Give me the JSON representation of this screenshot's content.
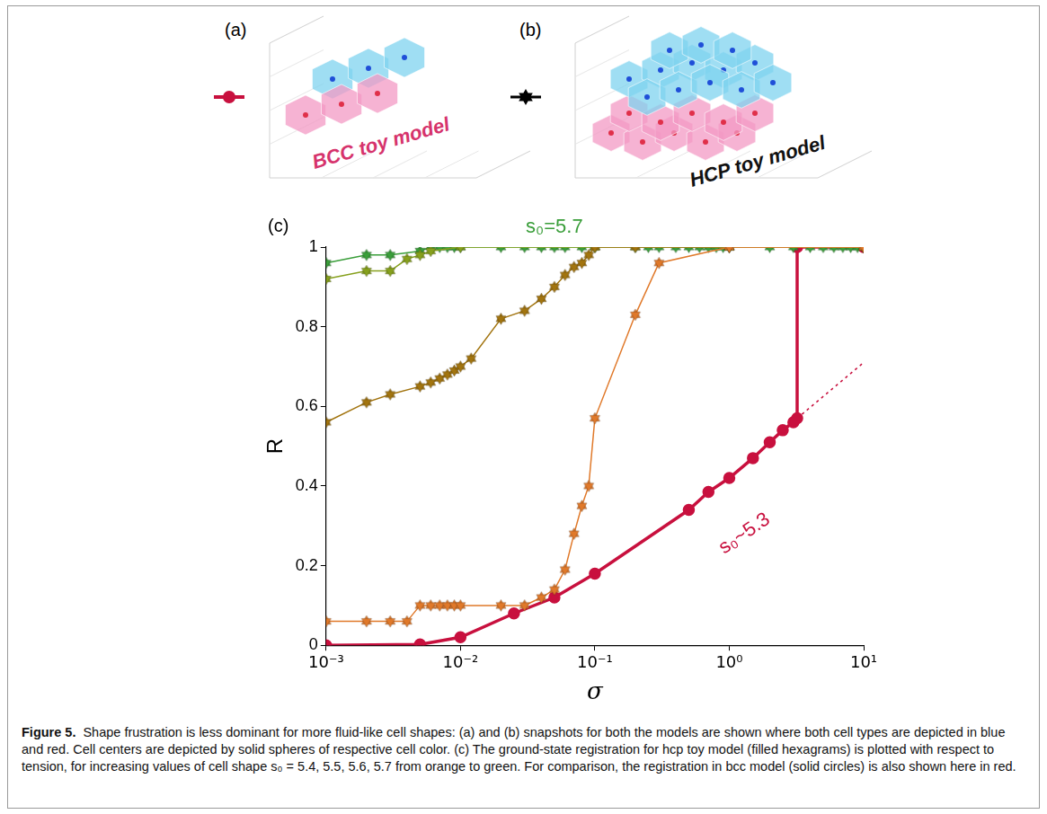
{
  "panels": [
    {
      "label": "(a)",
      "title": "BCC toy model"
    },
    {
      "label": "(b)",
      "title": "HCP toy model"
    }
  ],
  "chart_data": {
    "label": "(c)",
    "type": "line",
    "x_label": "σ",
    "y_label": "R",
    "log": "x",
    "grid": false,
    "xlim": [
      0.001,
      10
    ],
    "xticks": [
      {
        "value": 0.001,
        "label": "10⁻³"
      },
      {
        "value": 0.01,
        "label": "10⁻²"
      },
      {
        "value": 0.1,
        "label": "10⁻¹"
      },
      {
        "value": 1,
        "label": "10⁰"
      },
      {
        "value": 10,
        "label": "10¹"
      }
    ],
    "ylim": [
      0,
      1
    ],
    "yticks": [
      0,
      0.2,
      0.4,
      0.6,
      0.8,
      1
    ],
    "series": [
      {
        "color": "#e0792a",
        "marker": "hexagram",
        "line_style": "solid",
        "x": [
          0.001,
          0.002,
          0.003,
          0.004,
          0.005,
          0.006,
          0.007,
          0.008,
          0.009,
          0.01,
          0.02,
          0.03,
          0.04,
          0.05,
          0.06,
          0.07,
          0.08,
          0.09,
          0.1,
          0.2,
          0.3,
          1,
          10
        ],
        "values": [
          0.06,
          0.06,
          0.06,
          0.06,
          0.1,
          0.1,
          0.1,
          0.1,
          0.1,
          0.1,
          0.1,
          0.1,
          0.12,
          0.14,
          0.19,
          0.28,
          0.35,
          0.4,
          0.57,
          0.83,
          0.96,
          1,
          1
        ]
      },
      {
        "color": "#a2740f",
        "marker": "hexagram",
        "line_style": "solid",
        "x": [
          0.001,
          0.002,
          0.003,
          0.005,
          0.006,
          0.007,
          0.008,
          0.009,
          0.01,
          0.012,
          0.02,
          0.03,
          0.04,
          0.05,
          0.06,
          0.07,
          0.08,
          0.09,
          0.1,
          0.2,
          1,
          10
        ],
        "values": [
          0.56,
          0.61,
          0.63,
          0.65,
          0.66,
          0.67,
          0.68,
          0.69,
          0.7,
          0.72,
          0.82,
          0.84,
          0.87,
          0.9,
          0.93,
          0.95,
          0.96,
          0.98,
          1,
          1,
          1,
          1
        ]
      },
      {
        "color": "#86a01d",
        "marker": "hexagram",
        "line_style": "solid",
        "x": [
          0.001,
          0.002,
          0.003,
          0.004,
          0.005,
          0.006,
          0.01,
          0.1,
          1,
          10
        ],
        "values": [
          0.92,
          0.94,
          0.94,
          0.97,
          0.98,
          0.99,
          1,
          1,
          1,
          1
        ]
      },
      {
        "color": "#3a9e3a",
        "marker": "hexagram",
        "line_style": "solid",
        "x": [
          0.001,
          0.002,
          0.003,
          0.005,
          0.006,
          0.007,
          0.008,
          0.009,
          0.01,
          0.02,
          0.03,
          0.04,
          0.05,
          0.06,
          0.08,
          0.1,
          0.2,
          0.25,
          0.3,
          0.4,
          0.5,
          0.6,
          0.7,
          0.8,
          0.9,
          1,
          2,
          3,
          4,
          5,
          6,
          7,
          8,
          9,
          10
        ],
        "values": [
          0.96,
          0.98,
          0.98,
          0.99,
          1,
          1,
          1,
          1,
          1,
          1,
          1,
          1,
          1,
          1,
          1,
          1,
          1,
          1,
          1,
          1,
          1,
          1,
          1,
          1,
          1,
          1,
          1,
          1,
          1,
          1,
          1,
          1,
          1,
          1,
          1
        ]
      },
      {
        "color": "#c8103e",
        "marker": "circle",
        "line_style": "solid",
        "x": [
          0.001,
          0.005,
          0.01,
          0.025,
          0.05,
          0.1,
          0.5,
          0.7,
          1,
          1.5,
          2,
          2.5,
          3,
          3.2,
          3.2,
          10
        ],
        "values": [
          0,
          0.002,
          0.02,
          0.08,
          0.12,
          0.18,
          0.34,
          0.385,
          0.42,
          0.47,
          0.51,
          0.54,
          0.56,
          0.57,
          1,
          1
        ]
      },
      {
        "color": "#c8103e",
        "marker": "none",
        "line_style": "dotted",
        "x": [
          3.2,
          10
        ],
        "values": [
          0.57,
          0.71
        ]
      }
    ],
    "annotations": [
      {
        "text": "s₀=5.7",
        "x": 0.05,
        "y": 1.05,
        "color": "#3a9e3a"
      },
      {
        "text": "s₀~5.3",
        "x": 1.3,
        "y": 0.28,
        "color": "#c8103e"
      }
    ]
  },
  "caption": {
    "label": "Figure 5.",
    "text": "Shape frustration is less dominant for more fluid-like cell shapes: (a) and (b) snapshots for both the models are shown where both cell types are depicted in blue and red. Cell centers are depicted by solid spheres of respective cell color. (c) The ground-state registration for hcp toy model (filled hexagrams) is plotted with respect to tension, for increasing values of cell shape s₀ = 5.4, 5.5, 5.6, 5.7 from orange to green. For comparison, the registration in bcc model (solid circles) is also shown here in red."
  }
}
